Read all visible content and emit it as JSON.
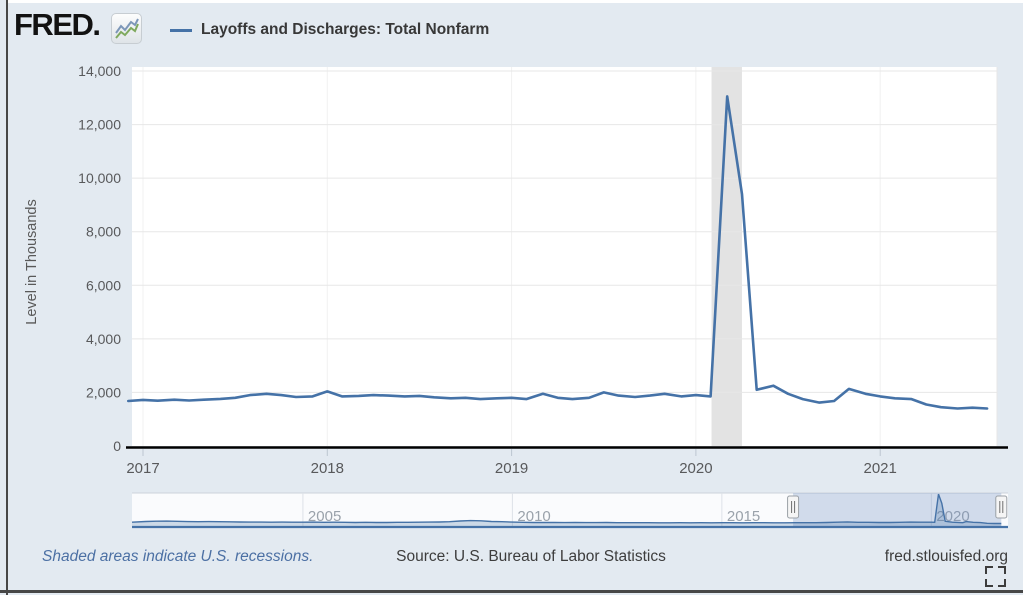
{
  "header": {
    "logo_text": "FRED.",
    "legend_label": "Layoffs and Discharges: Total Nonfarm",
    "legend_color": "#4572a7"
  },
  "footer": {
    "recessions_note": "Shaded areas indicate U.S. recessions.",
    "source": "Source: U.S. Bureau of Labor Statistics",
    "site": "fred.stlouisfed.org"
  },
  "chart_data": {
    "type": "line",
    "title": "Layoffs and Discharges: Total Nonfarm",
    "ylabel": "Level in Thousands",
    "xlabel": "",
    "grid": true,
    "legend_position": "top",
    "ylim": [
      0,
      14000
    ],
    "xlim": [
      2016.9,
      2021.66
    ],
    "y_ticks": [
      {
        "v": 0,
        "label": "0"
      },
      {
        "v": 2000,
        "label": "2,000"
      },
      {
        "v": 4000,
        "label": "4,000"
      },
      {
        "v": 6000,
        "label": "6,000"
      },
      {
        "v": 8000,
        "label": "8,000"
      },
      {
        "v": 10000,
        "label": "10,000"
      },
      {
        "v": 12000,
        "label": "12,000"
      },
      {
        "v": 14000,
        "label": "14,000"
      }
    ],
    "x_ticks": [
      {
        "v": 2017,
        "label": "2017"
      },
      {
        "v": 2018,
        "label": "2018"
      },
      {
        "v": 2019,
        "label": "2019"
      },
      {
        "v": 2020,
        "label": "2020"
      },
      {
        "v": 2021,
        "label": "2021"
      }
    ],
    "recession_bands": [
      {
        "start": 2020.085,
        "end": 2020.25
      }
    ],
    "series": [
      {
        "name": "Layoffs and Discharges: Total Nonfarm",
        "color": "#4572a7",
        "unit": "Thousands",
        "points": [
          [
            2016.92,
            1680
          ],
          [
            2017.0,
            1720
          ],
          [
            2017.08,
            1690
          ],
          [
            2017.17,
            1730
          ],
          [
            2017.25,
            1700
          ],
          [
            2017.33,
            1730
          ],
          [
            2017.42,
            1760
          ],
          [
            2017.5,
            1800
          ],
          [
            2017.58,
            1900
          ],
          [
            2017.67,
            1950
          ],
          [
            2017.75,
            1900
          ],
          [
            2017.83,
            1830
          ],
          [
            2017.92,
            1850
          ],
          [
            2018.0,
            2040
          ],
          [
            2018.08,
            1850
          ],
          [
            2018.17,
            1870
          ],
          [
            2018.25,
            1900
          ],
          [
            2018.33,
            1880
          ],
          [
            2018.42,
            1850
          ],
          [
            2018.5,
            1870
          ],
          [
            2018.58,
            1820
          ],
          [
            2018.67,
            1780
          ],
          [
            2018.75,
            1800
          ],
          [
            2018.83,
            1750
          ],
          [
            2018.92,
            1780
          ],
          [
            2019.0,
            1800
          ],
          [
            2019.08,
            1750
          ],
          [
            2019.17,
            1950
          ],
          [
            2019.25,
            1800
          ],
          [
            2019.33,
            1750
          ],
          [
            2019.42,
            1800
          ],
          [
            2019.5,
            2000
          ],
          [
            2019.58,
            1880
          ],
          [
            2019.67,
            1830
          ],
          [
            2019.75,
            1880
          ],
          [
            2019.83,
            1950
          ],
          [
            2019.92,
            1850
          ],
          [
            2020.0,
            1900
          ],
          [
            2020.08,
            1850
          ],
          [
            2020.17,
            13050
          ],
          [
            2020.25,
            9400
          ],
          [
            2020.33,
            2100
          ],
          [
            2020.42,
            2250
          ],
          [
            2020.5,
            1950
          ],
          [
            2020.58,
            1750
          ],
          [
            2020.67,
            1620
          ],
          [
            2020.75,
            1680
          ],
          [
            2020.83,
            2130
          ],
          [
            2020.92,
            1950
          ],
          [
            2021.0,
            1850
          ],
          [
            2021.08,
            1780
          ],
          [
            2021.17,
            1750
          ],
          [
            2021.25,
            1550
          ],
          [
            2021.33,
            1450
          ],
          [
            2021.42,
            1400
          ],
          [
            2021.5,
            1430
          ],
          [
            2021.58,
            1400
          ]
        ]
      }
    ],
    "navigator": {
      "xlim": [
        2000.92,
        2021.83
      ],
      "ylim": [
        0,
        13500
      ],
      "x_ticks": [
        {
          "v": 2005,
          "label": "2005"
        },
        {
          "v": 2010,
          "label": "2010"
        },
        {
          "v": 2015,
          "label": "2015"
        },
        {
          "v": 2020,
          "label": "2020"
        }
      ],
      "selection": {
        "start": 2016.7,
        "end": 2021.67
      },
      "points": [
        [
          2000.92,
          1900
        ],
        [
          2001.25,
          2200
        ],
        [
          2001.5,
          2300
        ],
        [
          2001.75,
          2350
        ],
        [
          2002,
          2250
        ],
        [
          2002.25,
          2150
        ],
        [
          2002.5,
          2100
        ],
        [
          2002.75,
          2150
        ],
        [
          2003,
          2100
        ],
        [
          2003.25,
          2050
        ],
        [
          2003.5,
          2000
        ],
        [
          2003.75,
          1950
        ],
        [
          2004,
          1950
        ],
        [
          2004.25,
          1900
        ],
        [
          2004.5,
          1950
        ],
        [
          2004.75,
          1900
        ],
        [
          2005,
          1900
        ],
        [
          2005.25,
          1950
        ],
        [
          2005.5,
          1850
        ],
        [
          2005.75,
          1900
        ],
        [
          2006,
          1850
        ],
        [
          2006.25,
          1800
        ],
        [
          2006.5,
          1850
        ],
        [
          2006.75,
          1800
        ],
        [
          2007,
          1800
        ],
        [
          2007.25,
          1850
        ],
        [
          2007.5,
          1850
        ],
        [
          2007.75,
          1900
        ],
        [
          2008,
          1950
        ],
        [
          2008.25,
          2000
        ],
        [
          2008.5,
          2100
        ],
        [
          2008.75,
          2400
        ],
        [
          2009,
          2550
        ],
        [
          2009.25,
          2450
        ],
        [
          2009.5,
          2200
        ],
        [
          2009.75,
          2100
        ],
        [
          2010,
          1950
        ],
        [
          2010.25,
          1850
        ],
        [
          2010.5,
          1800
        ],
        [
          2010.75,
          1800
        ],
        [
          2011,
          1800
        ],
        [
          2011.25,
          1750
        ],
        [
          2011.5,
          1800
        ],
        [
          2011.75,
          1750
        ],
        [
          2012,
          1750
        ],
        [
          2012.25,
          1800
        ],
        [
          2012.5,
          1700
        ],
        [
          2012.75,
          1700
        ],
        [
          2013,
          1700
        ],
        [
          2013.25,
          1700
        ],
        [
          2013.5,
          1650
        ],
        [
          2013.75,
          1650
        ],
        [
          2014,
          1700
        ],
        [
          2014.25,
          1650
        ],
        [
          2014.5,
          1700
        ],
        [
          2014.75,
          1650
        ],
        [
          2015,
          1700
        ],
        [
          2015.25,
          1700
        ],
        [
          2015.5,
          1650
        ],
        [
          2015.75,
          1700
        ],
        [
          2016,
          1700
        ],
        [
          2016.25,
          1650
        ],
        [
          2016.5,
          1650
        ],
        [
          2016.75,
          1700
        ],
        [
          2017,
          1720
        ],
        [
          2017.25,
          1720
        ],
        [
          2017.5,
          1800
        ],
        [
          2017.75,
          1900
        ],
        [
          2018,
          2040
        ],
        [
          2018.25,
          1880
        ],
        [
          2018.5,
          1850
        ],
        [
          2018.75,
          1790
        ],
        [
          2019,
          1800
        ],
        [
          2019.25,
          1850
        ],
        [
          2019.5,
          1950
        ],
        [
          2019.75,
          1900
        ],
        [
          2020,
          1900
        ],
        [
          2020.08,
          1850
        ],
        [
          2020.17,
          13050
        ],
        [
          2020.25,
          9400
        ],
        [
          2020.33,
          2250
        ],
        [
          2020.5,
          1900
        ],
        [
          2020.75,
          1700
        ],
        [
          2020.83,
          2130
        ],
        [
          2021,
          1850
        ],
        [
          2021.17,
          1750
        ],
        [
          2021.33,
          1450
        ],
        [
          2021.5,
          1400
        ],
        [
          2021.67,
          1400
        ]
      ]
    }
  }
}
